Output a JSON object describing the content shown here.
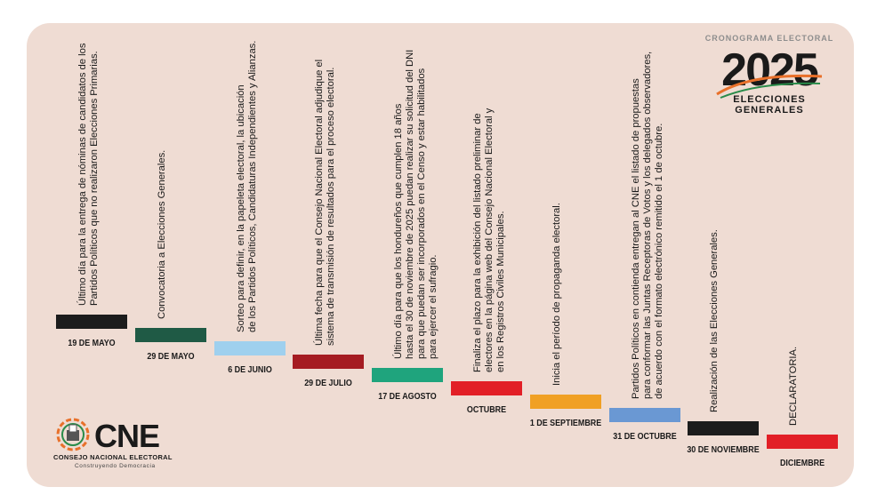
{
  "header": {
    "kicker": "CRONOGRAMA ELECTORAL",
    "year": "2025",
    "subtitle": "ELECCIONES GENERALES"
  },
  "logo": {
    "name": "CNE",
    "full_name": "CONSEJO NACIONAL ELECTORAL",
    "tagline": "Construyendo Democracia"
  },
  "events": [
    {
      "date": "19 DE MAYO",
      "color": "#1c1c1c",
      "lines": [
        "Último día para la entrega de nóminas de candidatos de los",
        "Partidos Políticos que no realizaron Elecciones Primarias."
      ]
    },
    {
      "date": "29 DE MAYO",
      "color": "#1f5a45",
      "lines": [
        "Convocatoria a Elecciones Generales."
      ]
    },
    {
      "date": "6 DE JUNIO",
      "color": "#9fd0ee",
      "lines": [
        "Sorteo para definir, en la papeleta electoral, la ubicación",
        "de los Partidos Políticos, Candidaturas Independientes y Alianzas."
      ]
    },
    {
      "date": "29 DE JULIO",
      "color": "#a51c22",
      "lines": [
        "Última fecha para que el Consejo Nacional Electoral adjudique el",
        "sistema de transmisión de resultados para el proceso electoral."
      ]
    },
    {
      "date": "17  DE AGOSTO",
      "color": "#1fa47d",
      "lines": [
        "Último día para que los hondureños que cumplen 18 años",
        "hasta el 30 de noviembre de 2025 puedan realizar su solicitud del DNI",
        "para que puedan ser incorporados en el Censo y estar habilitados",
        "para ejercer el sufragio."
      ]
    },
    {
      "date": "OCTUBRE",
      "color": "#e21f26",
      "lines": [
        "Finaliza el plazo para la exhibición del listado preliminar de",
        "electores en la página web del Consejo Nacional Electoral y",
        "en los Registros Civiles Municipales."
      ]
    },
    {
      "date": "1 DE SEPTIEMBRE",
      "color": "#f0a024",
      "lines": [
        "Inicia el período de propaganda electoral."
      ]
    },
    {
      "date": "31 DE OCTUBRE",
      "color": "#6a98d3",
      "lines": [
        "Partidos Políticos en contienda entregan al CNE el listado de propuestas",
        "para conformar las Juntas Receptoras de Votos y los delegados observadores,",
        "de acuerdo con el formato electrónico remitido el 1 de octubre."
      ]
    },
    {
      "date": "30 DE NOVIEMBRE",
      "color": "#1c1c1c",
      "lines": [
        "Realización de las Elecciones Generales."
      ]
    },
    {
      "date": "DICIEMBRE",
      "color": "#e21f26",
      "lines": [
        "DECLARATORIA."
      ]
    }
  ]
}
